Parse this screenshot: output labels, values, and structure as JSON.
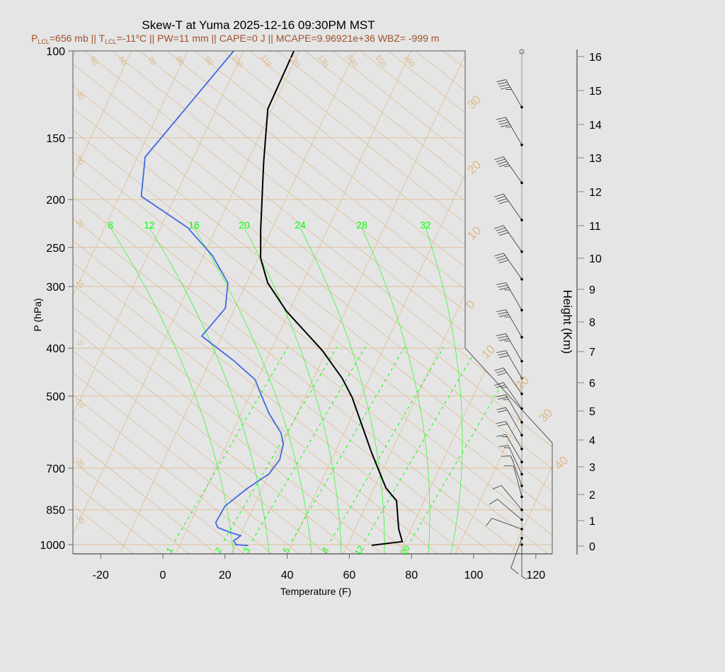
{
  "chart_data": {
    "type": "line",
    "title": "Skew-T at Yuma 2025-12-16 09:30PM MST",
    "subtitle": {
      "p_lcl": "656 mb",
      "t_lcl": "-11",
      "pw": "11 mm",
      "cape": "0 J",
      "mcape": "9.96921e+36",
      "wbz": "-999 m"
    },
    "subtitle_parts": {
      "p": "P",
      "lcl": "LCL",
      "eq_p": "=656 mb || ",
      "t": "T",
      "eq_t": "=-11",
      "deg": "o",
      "rest": "C || PW=11 mm || CAPE=0 J || MCAPE=9.96921e+36 WBZ= -999 m"
    },
    "xlabel": "Temperature (F)",
    "ylabel": "P (hPa)",
    "y2label": "Height (Km)",
    "x_ticks": [
      -20,
      0,
      20,
      40,
      60,
      80,
      100,
      120
    ],
    "y_ticks": [
      100,
      150,
      200,
      250,
      300,
      400,
      500,
      700,
      850,
      1000
    ],
    "y_scale": "log",
    "ylim": [
      1050,
      100
    ],
    "height_ticks": [
      0,
      1,
      2,
      3,
      4,
      5,
      6,
      7,
      8,
      9,
      10,
      11,
      12,
      13,
      14,
      15,
      16
    ],
    "dry_adiabat_labels_top": [
      "50",
      "60",
      "70",
      "80",
      "90",
      "100",
      "110",
      "120",
      "130",
      "140",
      "150",
      "160"
    ],
    "dry_adiabat_labels_left": [
      "40",
      "30",
      "20",
      "10",
      "0",
      "-10",
      "-20",
      "-30"
    ],
    "isotherm_labels_c": [
      "30",
      "20",
      "10",
      "0",
      "10",
      "20",
      "30",
      "40"
    ],
    "moist_adiabat_labels": [
      "8",
      "12",
      "16",
      "20",
      "24",
      "28",
      "32"
    ],
    "mixing_ratio_labels": [
      "1",
      "2",
      "3",
      "5",
      "8",
      "12",
      "20"
    ],
    "colors": {
      "temperature": "#000000",
      "dewpoint": "#4169e1",
      "background_lines": "#deb887",
      "moist": "#00ff00",
      "subtitle": "#a0522d"
    },
    "series": [
      {
        "type": "temperature",
        "color": "#000000",
        "points": [
          [
            1003,
            65.9
          ],
          [
            986,
            75.2
          ],
          [
            929,
            72.1
          ],
          [
            815,
            67.2
          ],
          [
            767,
            61.8
          ],
          [
            652,
            52.0
          ],
          [
            503,
            37.3
          ],
          [
            460,
            31.2
          ],
          [
            404,
            20.6
          ],
          [
            337,
            3.3
          ],
          [
            295,
            -7.1
          ],
          [
            263,
            -13.1
          ],
          [
            230,
            -17.4
          ],
          [
            168,
            -26.6
          ],
          [
            131,
            -33.3
          ],
          [
            100,
            -33.6
          ]
        ]
      },
      {
        "type": "dewpoint",
        "color": "#4169e1",
        "points": [
          [
            1004,
            26.2
          ],
          [
            1000,
            22.1
          ],
          [
            982,
            20.8
          ],
          [
            959,
            22.3
          ],
          [
            944,
            18.3
          ],
          [
            923,
            13.7
          ],
          [
            902,
            12.3
          ],
          [
            835,
            12.8
          ],
          [
            768,
            17.4
          ],
          [
            719,
            22.1
          ],
          [
            673,
            23.4
          ],
          [
            625,
            22.2
          ],
          [
            594,
            19.8
          ],
          [
            543,
            13.1
          ],
          [
            509,
            9.1
          ],
          [
            463,
            3.4
          ],
          [
            424,
            -6.3
          ],
          [
            378,
            -20.3
          ],
          [
            332,
            -16.9
          ],
          [
            295,
            -19.9
          ],
          [
            260,
            -28.9
          ],
          [
            228,
            -41.2
          ],
          [
            197,
            -60.8
          ],
          [
            164,
            -65.5
          ],
          [
            100,
            -53
          ]
        ]
      }
    ],
    "wind_barbs": [
      {
        "p": 130,
        "dir": 330,
        "kt": 45
      },
      {
        "p": 155,
        "dir": 330,
        "kt": 45
      },
      {
        "p": 185,
        "dir": 325,
        "kt": 45
      },
      {
        "p": 220,
        "dir": 325,
        "kt": 40
      },
      {
        "p": 255,
        "dir": 325,
        "kt": 40
      },
      {
        "p": 290,
        "dir": 325,
        "kt": 40
      },
      {
        "p": 335,
        "dir": 330,
        "kt": 35
      },
      {
        "p": 380,
        "dir": 330,
        "kt": 35
      },
      {
        "p": 425,
        "dir": 330,
        "kt": 35
      },
      {
        "p": 460,
        "dir": 330,
        "kt": 30
      },
      {
        "p": 495,
        "dir": 325,
        "kt": 30
      },
      {
        "p": 530,
        "dir": 325,
        "kt": 25
      },
      {
        "p": 565,
        "dir": 330,
        "kt": 25
      },
      {
        "p": 600,
        "dir": 330,
        "kt": 20
      },
      {
        "p": 640,
        "dir": 330,
        "kt": 20
      },
      {
        "p": 680,
        "dir": 330,
        "kt": 15
      },
      {
        "p": 720,
        "dir": 335,
        "kt": 15
      },
      {
        "p": 760,
        "dir": 340,
        "kt": 10
      },
      {
        "p": 800,
        "dir": 345,
        "kt": 10
      },
      {
        "p": 850,
        "dir": 320,
        "kt": 10
      },
      {
        "p": 890,
        "dir": 310,
        "kt": 10
      },
      {
        "p": 930,
        "dir": 290,
        "kt": 10
      },
      {
        "p": 970,
        "dir": 200,
        "kt": 10
      },
      {
        "p": 1000,
        "dir": 180,
        "kt": 5
      }
    ]
  }
}
